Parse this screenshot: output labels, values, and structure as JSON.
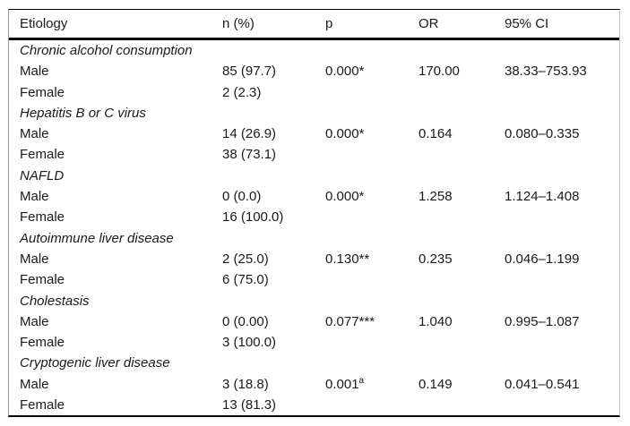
{
  "table": {
    "columns": [
      "Etiology",
      "n (%)",
      "p",
      "OR",
      "95% CI"
    ],
    "groups": [
      {
        "etiology": "Chronic alcohol consumption",
        "rows": [
          {
            "label": "Male",
            "n": "85 (97.7)",
            "p": "0.000*",
            "p_sup": "",
            "or": "170.00",
            "ci": "38.33–753.93"
          },
          {
            "label": "Female",
            "n": "2 (2.3)",
            "p": "",
            "p_sup": "",
            "or": "",
            "ci": ""
          }
        ]
      },
      {
        "etiology": "Hepatitis B or C virus",
        "rows": [
          {
            "label": "Male",
            "n": "14 (26.9)",
            "p": "0.000*",
            "p_sup": "",
            "or": "0.164",
            "ci": "0.080–0.335"
          },
          {
            "label": "Female",
            "n": "38 (73.1)",
            "p": "",
            "p_sup": "",
            "or": "",
            "ci": ""
          }
        ]
      },
      {
        "etiology": "NAFLD",
        "rows": [
          {
            "label": "Male",
            "n": "0 (0.0)",
            "p": "0.000*",
            "p_sup": "",
            "or": "1.258",
            "ci": "1.124–1.408"
          },
          {
            "label": "Female",
            "n": "16 (100.0)",
            "p": "",
            "p_sup": "",
            "or": "",
            "ci": ""
          }
        ]
      },
      {
        "etiology": "Autoimmune liver disease",
        "rows": [
          {
            "label": "Male",
            "n": "2 (25.0)",
            "p": "0.130**",
            "p_sup": "",
            "or": "0.235",
            "ci": "0.046–1.199"
          },
          {
            "label": "Female",
            "n": "6 (75.0)",
            "p": "",
            "p_sup": "",
            "or": "",
            "ci": ""
          }
        ]
      },
      {
        "etiology": "Cholestasis",
        "rows": [
          {
            "label": "Male",
            "n": "0 (0.00)",
            "p": "0.077***",
            "p_sup": "",
            "or": "1.040",
            "ci": "0.995–1.087"
          },
          {
            "label": "Female",
            "n": "3 (100.0)",
            "p": "",
            "p_sup": "",
            "or": "",
            "ci": ""
          }
        ]
      },
      {
        "etiology": "Cryptogenic liver disease",
        "rows": [
          {
            "label": "Male",
            "n": "3 (18.8)",
            "p": "0.001",
            "p_sup": "a",
            "or": "0.149",
            "ci": "0.041–0.541"
          },
          {
            "label": "Female",
            "n": "13 (81.3)",
            "p": "",
            "p_sup": "",
            "or": "",
            "ci": ""
          }
        ]
      }
    ]
  }
}
